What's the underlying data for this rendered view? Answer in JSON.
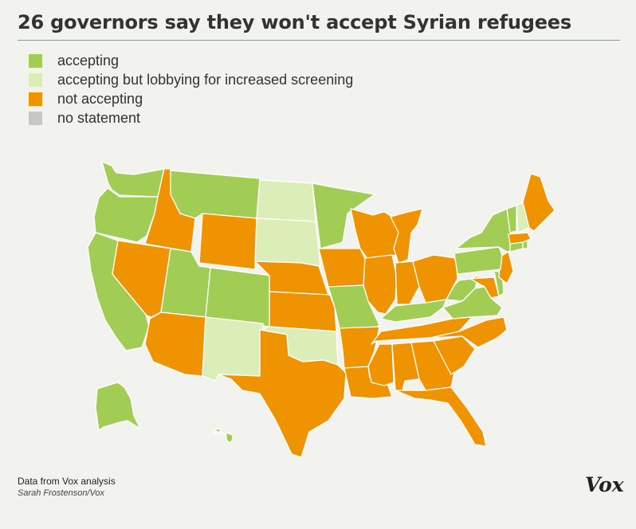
{
  "title": "26 governors say they won't accept Syrian refugees",
  "legend": [
    {
      "label": "accepting",
      "color": "#a2cd55"
    },
    {
      "label": "accepting but lobbying for increased screening",
      "color": "#dceeb8"
    },
    {
      "label": "not accepting",
      "color": "#f09300"
    },
    {
      "label": "no statement",
      "color": "#c7c7c7"
    }
  ],
  "status_colors": {
    "accepting": "#a2cd55",
    "screening": "#dceeb8",
    "not_accepting": "#f09300"
  },
  "states": [
    {
      "code": "WA",
      "status": "accepting"
    },
    {
      "code": "OR",
      "status": "accepting"
    },
    {
      "code": "CA",
      "status": "accepting"
    },
    {
      "code": "ID",
      "status": "not_accepting"
    },
    {
      "code": "NV",
      "status": "not_accepting"
    },
    {
      "code": "MT",
      "status": "accepting"
    },
    {
      "code": "WY",
      "status": "not_accepting"
    },
    {
      "code": "UT",
      "status": "accepting"
    },
    {
      "code": "AZ",
      "status": "not_accepting"
    },
    {
      "code": "CO",
      "status": "accepting"
    },
    {
      "code": "NM",
      "status": "screening"
    },
    {
      "code": "ND",
      "status": "screening"
    },
    {
      "code": "SD",
      "status": "screening"
    },
    {
      "code": "NE",
      "status": "not_accepting"
    },
    {
      "code": "KS",
      "status": "not_accepting"
    },
    {
      "code": "OK",
      "status": "screening"
    },
    {
      "code": "TX",
      "status": "not_accepting"
    },
    {
      "code": "MN",
      "status": "accepting"
    },
    {
      "code": "IA",
      "status": "not_accepting"
    },
    {
      "code": "MO",
      "status": "accepting"
    },
    {
      "code": "AR",
      "status": "not_accepting"
    },
    {
      "code": "LA",
      "status": "not_accepting"
    },
    {
      "code": "WI",
      "status": "not_accepting"
    },
    {
      "code": "IL",
      "status": "not_accepting"
    },
    {
      "code": "MI",
      "status": "not_accepting"
    },
    {
      "code": "IN",
      "status": "not_accepting"
    },
    {
      "code": "OH",
      "status": "not_accepting"
    },
    {
      "code": "KY",
      "status": "accepting"
    },
    {
      "code": "TN",
      "status": "not_accepting"
    },
    {
      "code": "MS",
      "status": "not_accepting"
    },
    {
      "code": "AL",
      "status": "not_accepting"
    },
    {
      "code": "GA",
      "status": "not_accepting"
    },
    {
      "code": "FL",
      "status": "not_accepting"
    },
    {
      "code": "SC",
      "status": "not_accepting"
    },
    {
      "code": "NC",
      "status": "not_accepting"
    },
    {
      "code": "VA",
      "status": "accepting"
    },
    {
      "code": "WV",
      "status": "accepting"
    },
    {
      "code": "MD",
      "status": "not_accepting"
    },
    {
      "code": "DE",
      "status": "accepting"
    },
    {
      "code": "NJ",
      "status": "not_accepting"
    },
    {
      "code": "PA",
      "status": "accepting"
    },
    {
      "code": "NY",
      "status": "accepting"
    },
    {
      "code": "CT",
      "status": "accepting"
    },
    {
      "code": "RI",
      "status": "accepting"
    },
    {
      "code": "MA",
      "status": "not_accepting"
    },
    {
      "code": "VT",
      "status": "accepting"
    },
    {
      "code": "NH",
      "status": "screening"
    },
    {
      "code": "ME",
      "status": "not_accepting"
    },
    {
      "code": "AK",
      "status": "accepting"
    },
    {
      "code": "HI",
      "status": "accepting"
    }
  ],
  "source": "Data from Vox analysis",
  "credit": "Sarah Frostenson/Vox",
  "logo": "Vox"
}
